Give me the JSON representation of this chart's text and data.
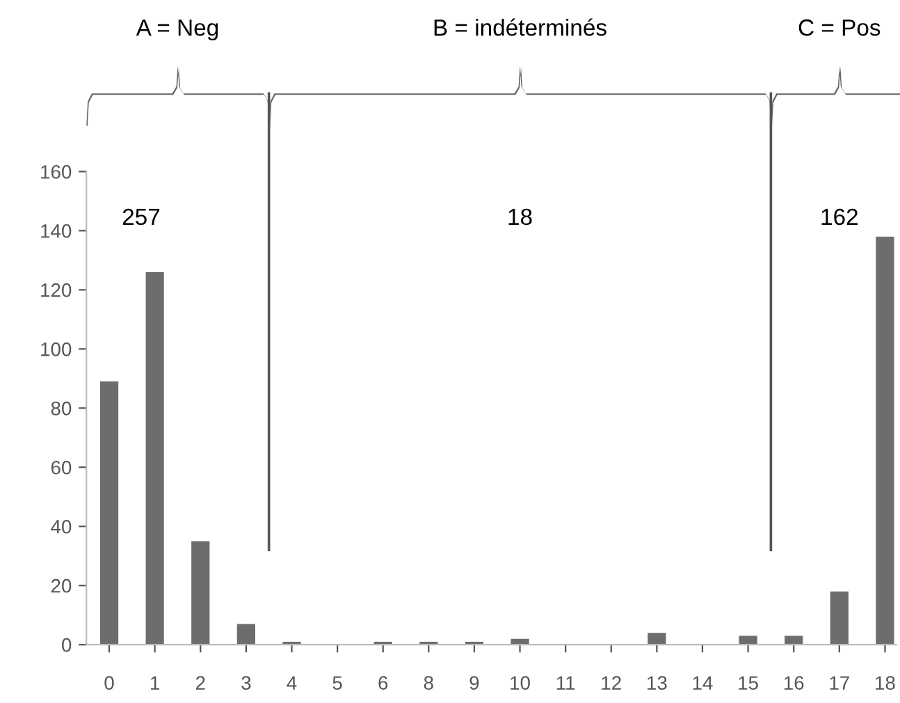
{
  "chart_data": {
    "type": "bar",
    "categories": [
      "0",
      "1",
      "2",
      "3",
      "4",
      "5",
      "6",
      "8",
      "9",
      "10",
      "11",
      "12",
      "13",
      "14",
      "15",
      "16",
      "17",
      "18"
    ],
    "values": [
      89,
      126,
      35,
      7,
      1,
      0,
      1,
      1,
      1,
      2,
      0,
      0,
      4,
      0,
      3,
      3,
      18,
      138
    ],
    "color": "#6d6d6d",
    "ylim": [
      0,
      160
    ],
    "yticks": [
      0,
      20,
      40,
      60,
      80,
      100,
      120,
      140,
      160
    ],
    "grid": false,
    "annotations": [
      "A = Neg",
      "B = indéterminés",
      "C = Pos",
      "257",
      "18",
      "162"
    ]
  }
}
